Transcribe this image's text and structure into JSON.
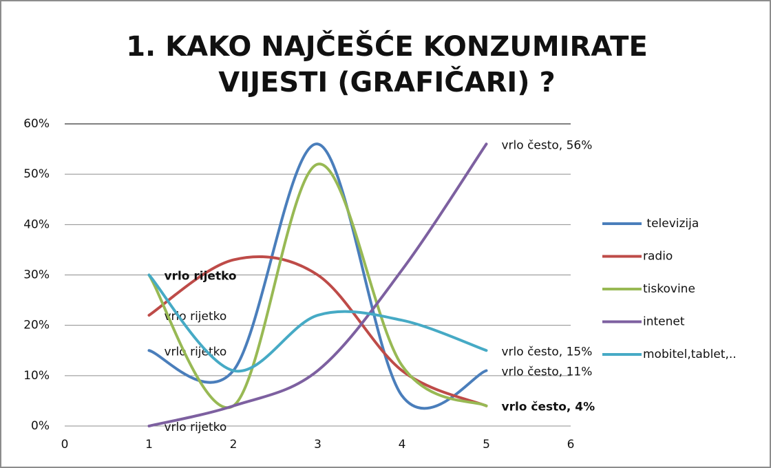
{
  "chart_data": {
    "type": "line",
    "title": "1. KAKO NAJČEŠĆE KONZUMIRATE VIJESTI (GRAFIČARI) ?",
    "x": [
      1,
      2,
      3,
      4,
      5
    ],
    "xlim": [
      0,
      6
    ],
    "xticks": [
      0,
      1,
      2,
      3,
      4,
      5,
      6
    ],
    "ylim": [
      0,
      60
    ],
    "yticks": [
      {
        "value": 0,
        "label": "0%"
      },
      {
        "value": 10,
        "label": "10%"
      },
      {
        "value": 20,
        "label": "20%"
      },
      {
        "value": 30,
        "label": "30%"
      },
      {
        "value": 40,
        "label": "40%"
      },
      {
        "value": 50,
        "label": "50%"
      },
      {
        "value": 60,
        "label": "60%"
      }
    ],
    "grid": true,
    "smooth": true,
    "legend": "right",
    "series": [
      {
        "name": " televizija",
        "color": "#4a7ebb",
        "values": [
          15,
          11,
          56,
          6,
          11
        ],
        "value_labels": [
          "vrlo rijetko",
          null,
          null,
          null,
          "vrlo često, 11%"
        ]
      },
      {
        "name": "radio",
        "color": "#be4b48",
        "values": [
          22,
          33,
          30,
          11,
          4
        ],
        "value_labels": [
          "vrlo rijetko",
          null,
          null,
          null,
          "vrlo često, 4%"
        ]
      },
      {
        "name": "tiskovine",
        "color": "#98b954",
        "values": [
          30,
          4,
          52,
          12,
          4
        ],
        "value_labels": [
          "vrlo rijetko",
          null,
          null,
          null,
          null
        ]
      },
      {
        "name": "intenet",
        "color": "#7d60a0",
        "values": [
          0,
          4,
          11,
          31,
          56
        ],
        "value_labels": [
          "vrlo rijetko",
          null,
          null,
          null,
          "vrlo često, 56%"
        ]
      },
      {
        "name": "mobitel,tablet,..",
        "color": "#46aac5",
        "values": [
          30,
          11,
          22,
          21,
          15
        ],
        "value_labels": [
          null,
          null,
          null,
          null,
          "vrlo često, 15%"
        ]
      }
    ]
  }
}
